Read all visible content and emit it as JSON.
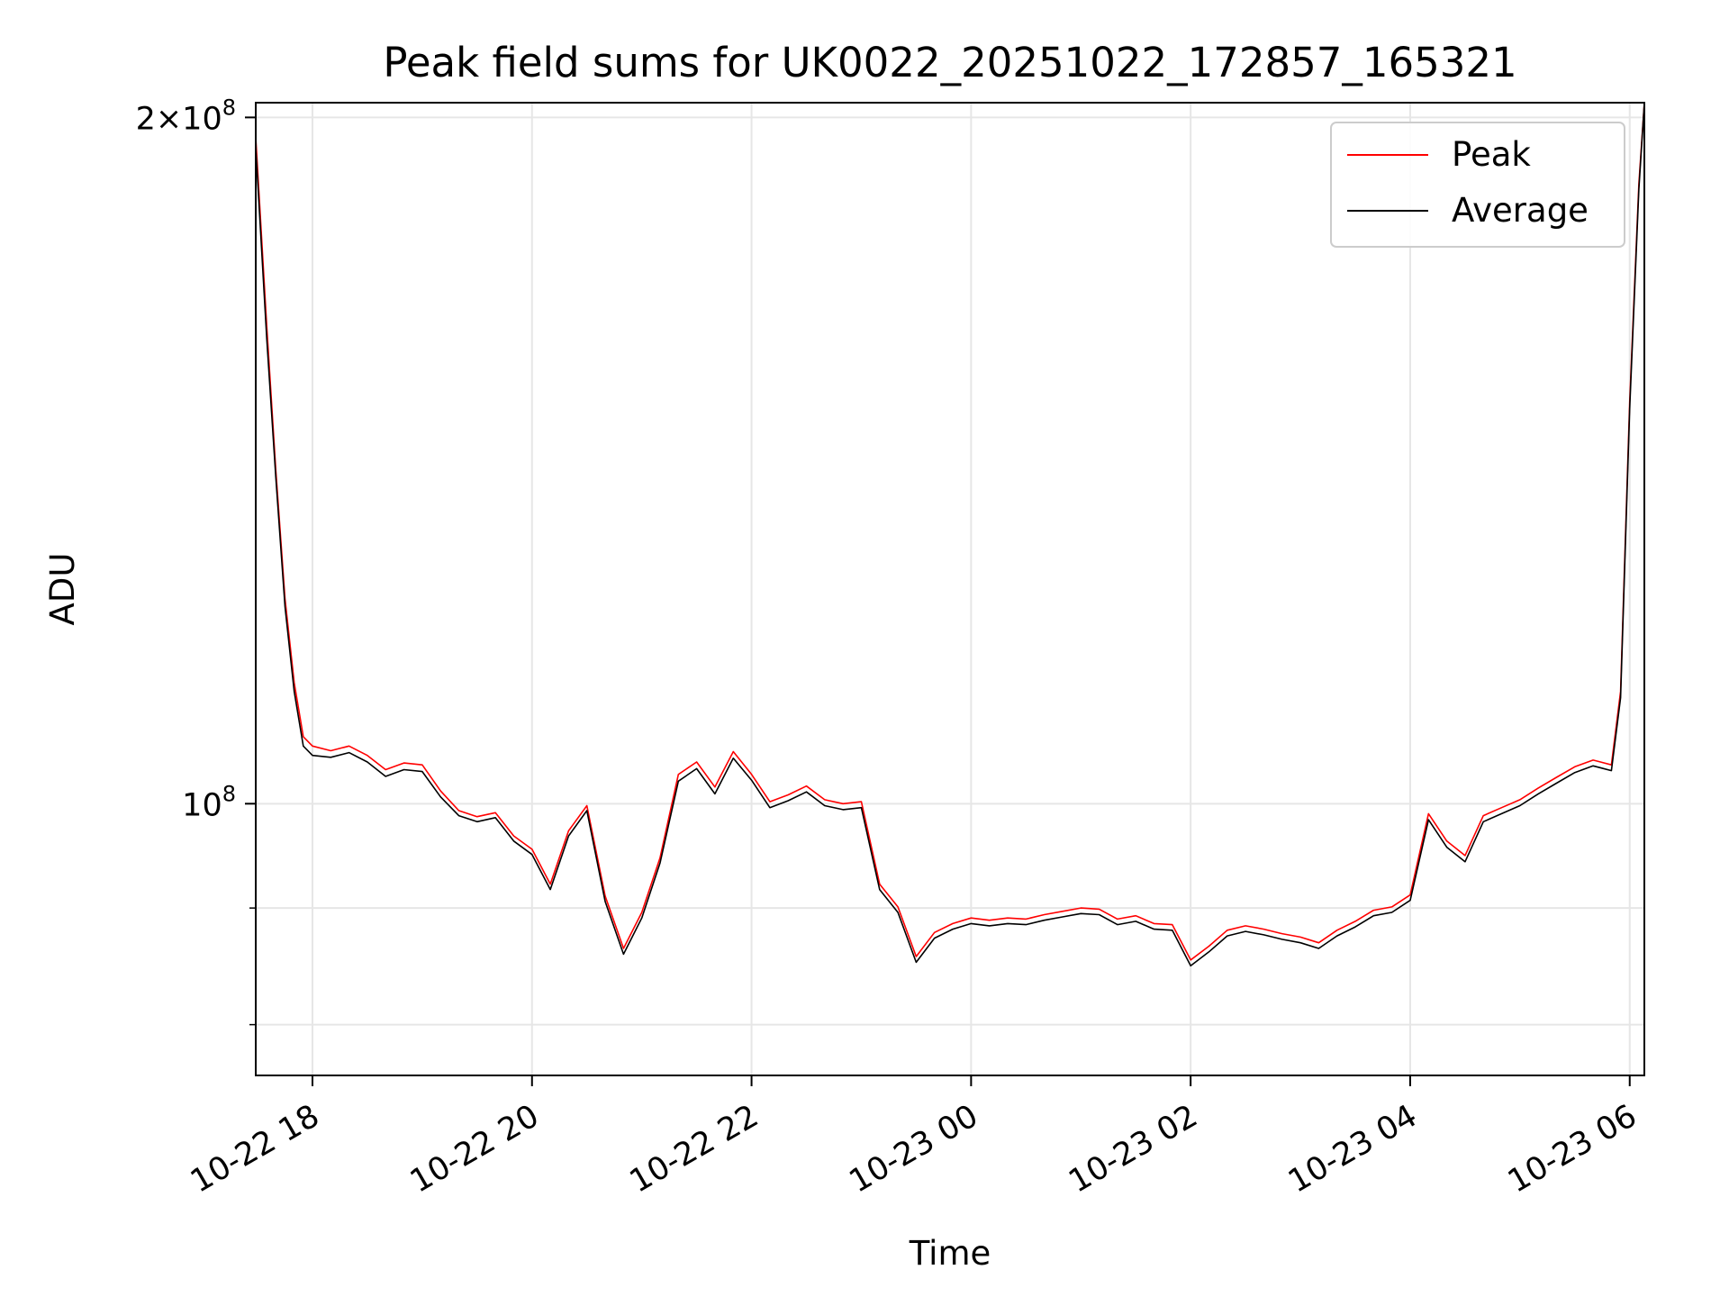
{
  "chart_data": {
    "type": "line",
    "title": "Peak field sums for UK0022_20251022_172857_165321",
    "xlabel": "Time",
    "ylabel": "ADU",
    "y_scale": "log",
    "xlim": [
      "2025-10-22T17:29",
      "2025-10-23T06:08"
    ],
    "ylim": [
      76000000,
      203000000
    ],
    "x_ticks": [
      {
        "value": "2025-10-22T18:00",
        "label": "10-22 18"
      },
      {
        "value": "2025-10-22T20:00",
        "label": "10-22 20"
      },
      {
        "value": "2025-10-22T22:00",
        "label": "10-22 22"
      },
      {
        "value": "2025-10-23T00:00",
        "label": "10-23 00"
      },
      {
        "value": "2025-10-23T02:00",
        "label": "10-23 02"
      },
      {
        "value": "2025-10-23T04:00",
        "label": "10-23 04"
      },
      {
        "value": "2025-10-23T06:00",
        "label": "10-23 06"
      }
    ],
    "y_major_ticks": [
      {
        "value": 100000000,
        "base": "10",
        "exp": "8"
      },
      {
        "value": 200000000,
        "base": "2×10",
        "exp": "8"
      }
    ],
    "y_minor_ticks": [
      60000000,
      70000000,
      80000000,
      90000000
    ],
    "grid": true,
    "legend_position": "upper-right",
    "x": [
      "2025-10-22T17:29",
      "2025-10-22T17:35",
      "2025-10-22T17:40",
      "2025-10-22T17:45",
      "2025-10-22T17:50",
      "2025-10-22T17:55",
      "2025-10-22T18:00",
      "2025-10-22T18:10",
      "2025-10-22T18:20",
      "2025-10-22T18:30",
      "2025-10-22T18:40",
      "2025-10-22T18:50",
      "2025-10-22T19:00",
      "2025-10-22T19:10",
      "2025-10-22T19:20",
      "2025-10-22T19:30",
      "2025-10-22T19:40",
      "2025-10-22T19:50",
      "2025-10-22T20:00",
      "2025-10-22T20:10",
      "2025-10-22T20:20",
      "2025-10-22T20:30",
      "2025-10-22T20:40",
      "2025-10-22T20:50",
      "2025-10-22T21:00",
      "2025-10-22T21:10",
      "2025-10-22T21:20",
      "2025-10-22T21:30",
      "2025-10-22T21:40",
      "2025-10-22T21:50",
      "2025-10-22T22:00",
      "2025-10-22T22:10",
      "2025-10-22T22:20",
      "2025-10-22T22:30",
      "2025-10-22T22:40",
      "2025-10-22T22:50",
      "2025-10-22T23:00",
      "2025-10-22T23:10",
      "2025-10-22T23:20",
      "2025-10-22T23:30",
      "2025-10-22T23:40",
      "2025-10-22T23:50",
      "2025-10-23T00:00",
      "2025-10-23T00:10",
      "2025-10-23T00:20",
      "2025-10-23T00:30",
      "2025-10-23T00:40",
      "2025-10-23T00:50",
      "2025-10-23T01:00",
      "2025-10-23T01:10",
      "2025-10-23T01:20",
      "2025-10-23T01:30",
      "2025-10-23T01:40",
      "2025-10-23T01:50",
      "2025-10-23T02:00",
      "2025-10-23T02:10",
      "2025-10-23T02:20",
      "2025-10-23T02:30",
      "2025-10-23T02:40",
      "2025-10-23T02:50",
      "2025-10-23T03:00",
      "2025-10-23T03:10",
      "2025-10-23T03:20",
      "2025-10-23T03:30",
      "2025-10-23T03:40",
      "2025-10-23T03:50",
      "2025-10-23T04:00",
      "2025-10-23T04:10",
      "2025-10-23T04:20",
      "2025-10-23T04:30",
      "2025-10-23T04:40",
      "2025-10-23T04:50",
      "2025-10-23T05:00",
      "2025-10-23T05:10",
      "2025-10-23T05:20",
      "2025-10-23T05:30",
      "2025-10-23T05:40",
      "2025-10-23T05:50",
      "2025-10-23T05:55",
      "2025-10-23T06:00",
      "2025-10-23T06:05",
      "2025-10-23T06:08"
    ],
    "series": [
      {
        "name": "Peak",
        "color": "#ff0000",
        "values": [
          196000000,
          162000000,
          140000000,
          123000000,
          113000000,
          107000000,
          106000000,
          105500000,
          106000000,
          105000000,
          103500000,
          104200000,
          104000000,
          101300000,
          99300000,
          98700000,
          99100000,
          96800000,
          95500000,
          92200000,
          97300000,
          99800000,
          91100000,
          86400000,
          89600000,
          94700000,
          103000000,
          104300000,
          101700000,
          105400000,
          103000000,
          100200000,
          100900000,
          101800000,
          100400000,
          100000000,
          100200000,
          92200000,
          90100000,
          85700000,
          87800000,
          88600000,
          89100000,
          88900000,
          89100000,
          89000000,
          89400000,
          89700000,
          90000000,
          89900000,
          89000000,
          89300000,
          88600000,
          88500000,
          85400000,
          86600000,
          88000000,
          88400000,
          88100000,
          87700000,
          87400000,
          86900000,
          88000000,
          88800000,
          89800000,
          90100000,
          91200000,
          99000000,
          96300000,
          94900000,
          98800000,
          99600000,
          100400000,
          101600000,
          102700000,
          103800000,
          104500000,
          104000000,
          112000000,
          150000000,
          187000000,
          204000000
        ]
      },
      {
        "name": "Average",
        "color": "#000000",
        "values": [
          194000000,
          160000000,
          139000000,
          122000000,
          112000000,
          106000000,
          105000000,
          104800000,
          105300000,
          104300000,
          102800000,
          103500000,
          103300000,
          100700000,
          98800000,
          98200000,
          98600000,
          96300000,
          95000000,
          91700000,
          96800000,
          99300000,
          90600000,
          85900000,
          89100000,
          94200000,
          102300000,
          103600000,
          101000000,
          104700000,
          102400000,
          99600000,
          100300000,
          101200000,
          99800000,
          99400000,
          99600000,
          91700000,
          89600000,
          85200000,
          87300000,
          88100000,
          88600000,
          88400000,
          88600000,
          88500000,
          88900000,
          89200000,
          89500000,
          89400000,
          88500000,
          88800000,
          88100000,
          88000000,
          84900000,
          86100000,
          87500000,
          87900000,
          87600000,
          87200000,
          86900000,
          86400000,
          87500000,
          88300000,
          89300000,
          89600000,
          90700000,
          98400000,
          95700000,
          94300000,
          98200000,
          99000000,
          99800000,
          101000000,
          102100000,
          103200000,
          103900000,
          103400000,
          111300000,
          149000000,
          186000000,
          203000000
        ]
      }
    ]
  }
}
